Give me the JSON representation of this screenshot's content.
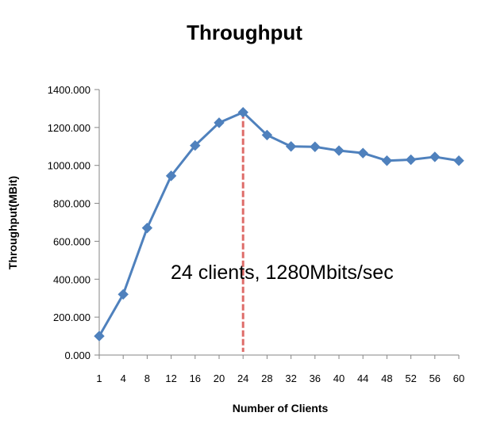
{
  "chart_data": {
    "type": "line",
    "title": "Throughput",
    "xlabel": "Number of Clients",
    "ylabel": "Throughput(MBit)",
    "categories": [
      "1",
      "4",
      "8",
      "12",
      "16",
      "20",
      "24",
      "28",
      "32",
      "36",
      "40",
      "44",
      "48",
      "52",
      "56",
      "60"
    ],
    "series": [
      {
        "values": [
          100,
          320,
          670,
          945,
          1105,
          1225,
          1280,
          1160,
          1100,
          1098,
          1078,
          1065,
          1025,
          1030,
          1045,
          1025
        ]
      }
    ],
    "y_ticks": [
      "0.000",
      "200.000",
      "400.000",
      "600.000",
      "800.000",
      "1000.000",
      "1200.000",
      "1400.000"
    ],
    "ylim": [
      0,
      1400
    ],
    "grid": false,
    "legend": "none",
    "annotation": {
      "text": "24 clients, 1280Mbits/sec",
      "marker_category": "24"
    },
    "colors": {
      "series": "#4F81BD",
      "marker_line": "#D9534F"
    }
  }
}
